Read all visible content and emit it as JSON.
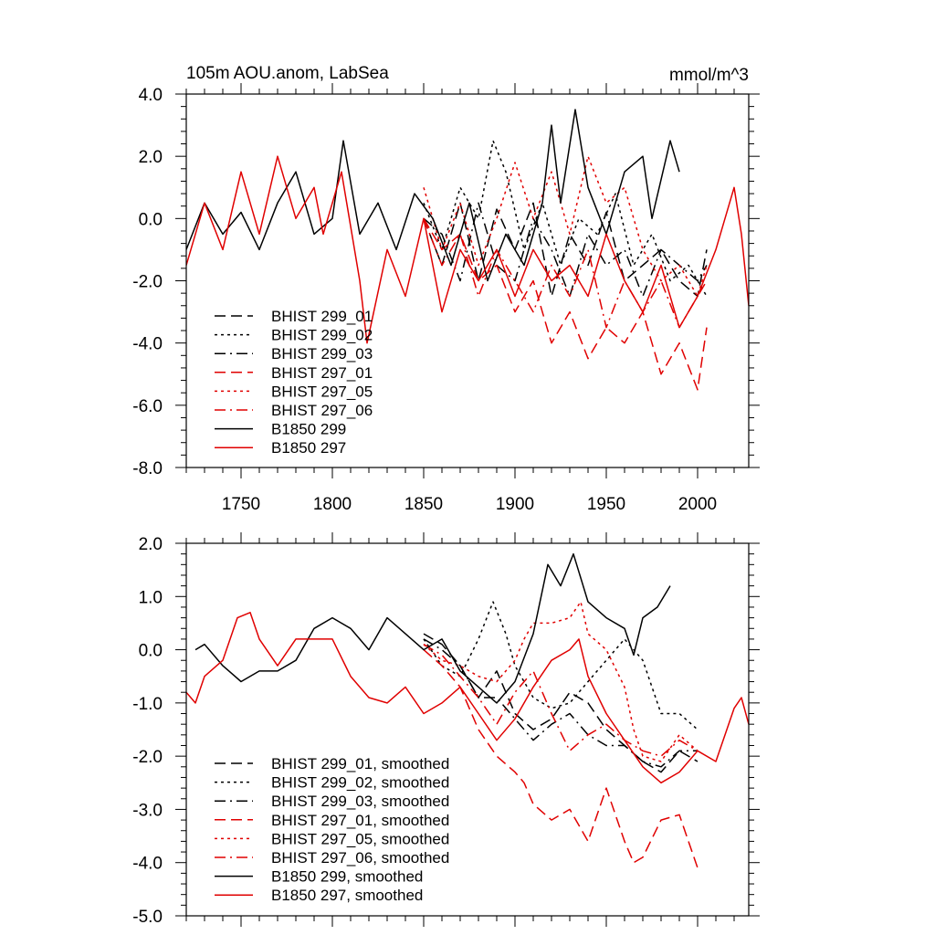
{
  "chart_data": [
    {
      "type": "line",
      "title": "105m AOU.anom, LabSea",
      "units": "mmol/m^3",
      "xlim": [
        1720,
        2028
      ],
      "ylim": [
        -8.0,
        4.0
      ],
      "x_ticks": [
        1750,
        1800,
        1850,
        1900,
        1950,
        2000
      ],
      "x_tick_labels": [
        "1750",
        "1800",
        "1850",
        "1900",
        "1950",
        "2000"
      ],
      "y_ticks": [
        -8,
        -6,
        -4,
        -2,
        0,
        2,
        4
      ],
      "y_tick_labels": [
        "-8.0",
        "-6.0",
        "-4.0",
        "-2.0",
        "0.0",
        "2.0",
        "4.0"
      ],
      "legend": "bottom-left",
      "series": [
        {
          "name": "BHIST 299_01",
          "color": "#000000",
          "dash": "dashed",
          "x": [
            1850,
            1860,
            1870,
            1880,
            1890,
            1900,
            1910,
            1920,
            1930,
            1940,
            1950,
            1960,
            1970,
            1980,
            1990,
            2000,
            2005
          ],
          "y": [
            0.0,
            -1.5,
            0.5,
            -2.0,
            0.3,
            -1.0,
            0.5,
            -2.5,
            -0.5,
            -1.5,
            0.2,
            -2.0,
            -1.5,
            -1.0,
            -2.0,
            -2.5,
            -1.0
          ]
        },
        {
          "name": "BHIST 299_02",
          "color": "#000000",
          "dash": "dotted",
          "x": [
            1850,
            1860,
            1870,
            1880,
            1888,
            1895,
            1905,
            1915,
            1925,
            1935,
            1945,
            1955,
            1965,
            1975,
            1985,
            1995,
            2005
          ],
          "y": [
            0.5,
            -1.0,
            1.0,
            0.0,
            2.5,
            1.5,
            -1.0,
            0.5,
            -1.5,
            0.0,
            -0.5,
            0.8,
            -1.5,
            -0.5,
            -2.0,
            -1.5,
            -2.5
          ]
        },
        {
          "name": "BHIST 299_03",
          "color": "#000000",
          "dash": "dashdot",
          "x": [
            1850,
            1860,
            1870,
            1880,
            1890,
            1900,
            1910,
            1920,
            1930,
            1940,
            1950,
            1960,
            1970,
            1980,
            1990,
            2000,
            2005
          ],
          "y": [
            0.0,
            -0.5,
            -2.0,
            0.5,
            -1.5,
            -2.0,
            0.0,
            -1.0,
            -2.5,
            -0.5,
            -1.5,
            -1.0,
            -2.5,
            -1.0,
            -1.5,
            -2.0,
            -1.5
          ]
        },
        {
          "name": "BHIST 297_01",
          "color": "#e00000",
          "dash": "dashed",
          "x": [
            1850,
            1860,
            1870,
            1880,
            1890,
            1900,
            1910,
            1920,
            1930,
            1940,
            1950,
            1960,
            1970,
            1980,
            1990,
            2000,
            2005
          ],
          "y": [
            0.0,
            -1.0,
            -0.5,
            -2.0,
            -1.5,
            -3.0,
            -2.0,
            -4.0,
            -3.0,
            -4.5,
            -3.5,
            -4.0,
            -3.0,
            -5.0,
            -4.0,
            -5.5,
            -3.5
          ]
        },
        {
          "name": "BHIST 297_05",
          "color": "#e00000",
          "dash": "dotted",
          "x": [
            1850,
            1860,
            1870,
            1880,
            1890,
            1900,
            1910,
            1920,
            1930,
            1940,
            1950,
            1960,
            1970,
            1980,
            1990,
            2000,
            2005
          ],
          "y": [
            1.0,
            -1.0,
            0.5,
            -1.5,
            0.0,
            1.8,
            0.0,
            1.5,
            -0.5,
            2.0,
            0.5,
            1.0,
            -1.0,
            -2.0,
            -1.5,
            -2.5,
            -1.5
          ]
        },
        {
          "name": "BHIST 297_06",
          "color": "#e00000",
          "dash": "dashdot",
          "x": [
            1850,
            1860,
            1870,
            1880,
            1890,
            1900,
            1910,
            1920,
            1930,
            1940,
            1950,
            1960,
            1970,
            1980,
            1990,
            2000,
            2005
          ],
          "y": [
            0.0,
            -1.5,
            -0.5,
            -2.5,
            -1.0,
            -2.0,
            -3.0,
            -1.5,
            -2.5,
            -1.0,
            -3.5,
            -2.0,
            -3.0,
            -2.0,
            -3.5,
            -2.5,
            -2.0
          ]
        },
        {
          "name": "B1850 299",
          "color": "#000000",
          "dash": "solid",
          "x": [
            1720,
            1730,
            1740,
            1750,
            1760,
            1770,
            1780,
            1790,
            1800,
            1806,
            1815,
            1825,
            1835,
            1845,
            1855,
            1865,
            1875,
            1885,
            1895,
            1905,
            1915,
            1920,
            1925,
            1933,
            1940,
            1950,
            1960,
            1970,
            1975,
            1985,
            1990
          ],
          "y": [
            -1.0,
            0.5,
            -0.5,
            0.2,
            -1.0,
            0.5,
            1.5,
            -0.5,
            0.0,
            2.5,
            -0.5,
            0.5,
            -1.0,
            0.8,
            0.0,
            -1.5,
            0.5,
            -2.0,
            -0.5,
            -1.5,
            0.5,
            3.0,
            0.5,
            3.5,
            1.0,
            -0.5,
            1.5,
            2.0,
            0.0,
            2.5,
            1.5
          ]
        },
        {
          "name": "B1850 297",
          "color": "#e00000",
          "dash": "solid",
          "x": [
            1720,
            1730,
            1740,
            1750,
            1760,
            1770,
            1780,
            1790,
            1795,
            1805,
            1815,
            1819,
            1830,
            1840,
            1850,
            1860,
            1870,
            1880,
            1890,
            1900,
            1910,
            1920,
            1930,
            1940,
            1950,
            1960,
            1970,
            1980,
            1990,
            2000,
            2010,
            2015,
            2020,
            2024,
            2028
          ],
          "y": [
            -1.5,
            0.5,
            -1.0,
            1.5,
            -0.5,
            2.0,
            0.0,
            1.0,
            -0.5,
            1.5,
            -2.0,
            -4.0,
            -1.0,
            -2.5,
            0.0,
            -3.0,
            -1.0,
            -2.0,
            -1.0,
            -2.5,
            -1.0,
            -2.0,
            -1.5,
            -2.5,
            -0.5,
            -2.0,
            -3.0,
            -1.5,
            -3.5,
            -2.5,
            -1.0,
            0.0,
            1.0,
            -0.5,
            -2.8
          ]
        }
      ]
    },
    {
      "type": "line",
      "title": "",
      "xlim": [
        1720,
        2028
      ],
      "ylim": [
        -5.0,
        2.0
      ],
      "x_ticks": [
        1750,
        1800,
        1850,
        1900,
        1950,
        2000
      ],
      "x_tick_labels": [],
      "y_ticks": [
        -5,
        -4,
        -3,
        -2,
        -1,
        0,
        1,
        2
      ],
      "y_tick_labels": [
        "-5.0",
        "-4.0",
        "-3.0",
        "-2.0",
        "-1.0",
        "0.0",
        "1.0",
        "2.0"
      ],
      "legend": "bottom-left",
      "series": [
        {
          "name": "BHIST 299_01, smoothed",
          "color": "#000000",
          "dash": "dashed",
          "x": [
            1850,
            1860,
            1870,
            1880,
            1890,
            1900,
            1910,
            1920,
            1930,
            1940,
            1950,
            1960,
            1970,
            1980,
            1990,
            2000
          ],
          "y": [
            0.3,
            0.1,
            -0.3,
            -0.9,
            -0.4,
            -1.2,
            -1.5,
            -1.3,
            -0.8,
            -1.0,
            -1.5,
            -1.8,
            -2.1,
            -2.3,
            -1.9,
            -2.1
          ]
        },
        {
          "name": "BHIST 299_02, smoothed",
          "color": "#000000",
          "dash": "dotted",
          "x": [
            1850,
            1860,
            1870,
            1880,
            1888,
            1895,
            1900,
            1910,
            1920,
            1930,
            1940,
            1950,
            1960,
            1970,
            1980,
            1990,
            2000
          ],
          "y": [
            0.2,
            -0.3,
            -0.5,
            0.2,
            0.9,
            0.3,
            -0.3,
            -0.9,
            -1.1,
            -1.0,
            -0.6,
            -0.2,
            0.2,
            -0.2,
            -1.2,
            -1.2,
            -1.5
          ]
        },
        {
          "name": "BHIST 299_03, smoothed",
          "color": "#000000",
          "dash": "dashdot",
          "x": [
            1850,
            1860,
            1870,
            1880,
            1890,
            1900,
            1910,
            1920,
            1930,
            1940,
            1950,
            1960,
            1970,
            1980,
            1990,
            2000
          ],
          "y": [
            0.2,
            0.0,
            -0.3,
            -0.9,
            -0.9,
            -1.3,
            -1.7,
            -1.4,
            -1.2,
            -1.6,
            -1.8,
            -1.8,
            -2.1,
            -2.2,
            -1.9,
            -1.9
          ]
        },
        {
          "name": "BHIST 297_01, smoothed",
          "color": "#e00000",
          "dash": "dashed",
          "x": [
            1850,
            1860,
            1870,
            1880,
            1890,
            1900,
            1905,
            1910,
            1920,
            1930,
            1940,
            1950,
            1960,
            1965,
            1970,
            1980,
            1990,
            2000
          ],
          "y": [
            0.0,
            -0.3,
            -0.7,
            -1.5,
            -2.0,
            -2.3,
            -2.5,
            -2.9,
            -3.2,
            -3.0,
            -3.6,
            -2.6,
            -3.6,
            -4.0,
            -3.9,
            -3.2,
            -3.1,
            -4.1
          ]
        },
        {
          "name": "BHIST 297_05, smoothed",
          "color": "#e00000",
          "dash": "dotted",
          "x": [
            1850,
            1860,
            1870,
            1880,
            1890,
            1900,
            1905,
            1910,
            1920,
            1930,
            1936,
            1940,
            1950,
            1960,
            1965,
            1970,
            1980,
            1990,
            2000
          ],
          "y": [
            0.1,
            -0.2,
            -0.3,
            -0.5,
            -0.6,
            -0.2,
            0.2,
            0.5,
            0.5,
            0.6,
            0.9,
            0.3,
            0.0,
            -0.7,
            -1.5,
            -2.0,
            -2.1,
            -1.6,
            -1.9
          ]
        },
        {
          "name": "BHIST 297_06, smoothed",
          "color": "#e00000",
          "dash": "dashdot",
          "x": [
            1850,
            1860,
            1870,
            1880,
            1890,
            1900,
            1910,
            1920,
            1930,
            1940,
            1950,
            1960,
            1970,
            1980,
            1990,
            2000
          ],
          "y": [
            0.1,
            -0.1,
            -0.5,
            -0.9,
            -1.4,
            -0.8,
            -0.4,
            -1.2,
            -1.9,
            -1.6,
            -1.4,
            -1.7,
            -1.9,
            -2.0,
            -1.7,
            -1.9
          ]
        },
        {
          "name": "B1850 299, smoothed",
          "color": "#000000",
          "dash": "solid",
          "x": [
            1725,
            1730,
            1740,
            1750,
            1760,
            1770,
            1780,
            1790,
            1800,
            1810,
            1820,
            1830,
            1840,
            1850,
            1860,
            1870,
            1880,
            1890,
            1900,
            1910,
            1918,
            1925,
            1932,
            1940,
            1950,
            1960,
            1965,
            1970,
            1978,
            1985
          ],
          "y": [
            0.0,
            0.1,
            -0.3,
            -0.6,
            -0.4,
            -0.4,
            -0.2,
            0.4,
            0.6,
            0.4,
            0.0,
            0.6,
            0.3,
            0.0,
            0.2,
            -0.4,
            -0.7,
            -1.0,
            -0.6,
            0.3,
            1.6,
            1.2,
            1.8,
            0.9,
            0.6,
            0.4,
            -0.1,
            0.6,
            0.8,
            1.2
          ]
        },
        {
          "name": "B1850 297, smoothed",
          "color": "#e00000",
          "dash": "solid",
          "x": [
            1720,
            1725,
            1730,
            1740,
            1748,
            1755,
            1760,
            1770,
            1780,
            1790,
            1800,
            1810,
            1820,
            1830,
            1840,
            1850,
            1860,
            1870,
            1880,
            1890,
            1900,
            1910,
            1920,
            1930,
            1935,
            1940,
            1950,
            1960,
            1970,
            1980,
            1990,
            2000,
            2010,
            2020,
            2024,
            2028
          ],
          "y": [
            -0.8,
            -1.0,
            -0.5,
            -0.2,
            0.6,
            0.7,
            0.2,
            -0.3,
            0.2,
            0.2,
            0.2,
            -0.5,
            -0.9,
            -1.0,
            -0.7,
            -1.2,
            -1.0,
            -0.7,
            -1.2,
            -1.7,
            -1.3,
            -0.7,
            -0.2,
            0.0,
            0.2,
            -0.5,
            -1.2,
            -1.7,
            -2.2,
            -2.5,
            -2.3,
            -1.9,
            -2.1,
            -1.1,
            -0.9,
            -1.4
          ]
        }
      ]
    }
  ]
}
